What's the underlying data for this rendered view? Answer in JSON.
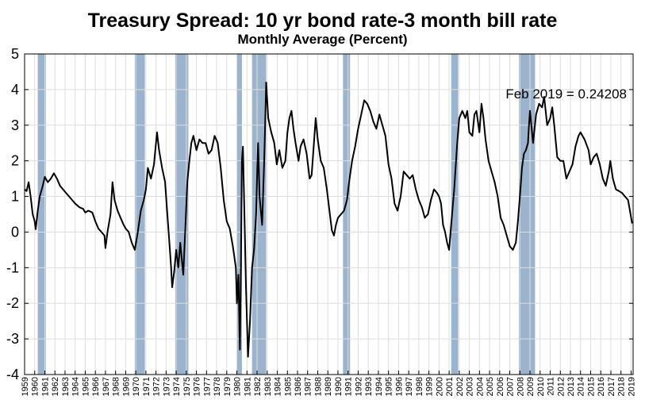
{
  "chart_data": {
    "type": "line",
    "title": "Treasury Spread: 10 yr bond rate-3 month bill rate",
    "subtitle": "Monthly Average (Percent)",
    "xlabel": "",
    "ylabel": "",
    "xlim": [
      1959,
      2019.2
    ],
    "ylim": [
      -4,
      5
    ],
    "yticks": [
      "5",
      "4",
      "3",
      "2",
      "1",
      "0",
      "-1",
      "-2",
      "-3",
      "-4"
    ],
    "xticks": [
      "1959",
      "1960",
      "1961",
      "1962",
      "1963",
      "1964",
      "1965",
      "1966",
      "1967",
      "1968",
      "1969",
      "1970",
      "1971",
      "1972",
      "1973",
      "1974",
      "1975",
      "1976",
      "1977",
      "1978",
      "1979",
      "1980",
      "1981",
      "1982",
      "1983",
      "1984",
      "1985",
      "1986",
      "1987",
      "1988",
      "1989",
      "1990",
      "1991",
      "1992",
      "1993",
      "1994",
      "1995",
      "1996",
      "1997",
      "1998",
      "1999",
      "2000",
      "2001",
      "2002",
      "2003",
      "2004",
      "2005",
      "2006",
      "2007",
      "2008",
      "2009",
      "2010",
      "2011",
      "2012",
      "2013",
      "2014",
      "2015",
      "2016",
      "2017",
      "2018",
      "2019"
    ],
    "grid": true,
    "annotation": "Feb 2019 = 0.24208",
    "colors": {
      "line": "#000000",
      "recession": "#9bb3cd",
      "grid": "#dddddd"
    },
    "recessions": [
      [
        1960.3,
        1961.1
      ],
      [
        1969.9,
        1970.9
      ],
      [
        1973.9,
        1975.2
      ],
      [
        1980.0,
        1980.5
      ],
      [
        1981.5,
        1982.9
      ],
      [
        1990.5,
        1991.2
      ],
      [
        2001.2,
        2001.9
      ],
      [
        2007.9,
        2009.5
      ]
    ],
    "series": [
      {
        "points": [
          [
            1959.0,
            1.2
          ],
          [
            1959.2,
            1.15
          ],
          [
            1959.4,
            1.4
          ],
          [
            1959.6,
            1.0
          ],
          [
            1959.8,
            0.5
          ],
          [
            1960.0,
            0.3
          ],
          [
            1960.1,
            0.08
          ],
          [
            1960.3,
            0.6
          ],
          [
            1960.5,
            1.0
          ],
          [
            1960.8,
            1.3
          ],
          [
            1961.0,
            1.55
          ],
          [
            1961.3,
            1.4
          ],
          [
            1961.6,
            1.5
          ],
          [
            1961.9,
            1.65
          ],
          [
            1962.2,
            1.5
          ],
          [
            1962.5,
            1.3
          ],
          [
            1962.8,
            1.2
          ],
          [
            1963.1,
            1.1
          ],
          [
            1963.4,
            1.0
          ],
          [
            1963.7,
            0.9
          ],
          [
            1964.0,
            0.8
          ],
          [
            1964.4,
            0.7
          ],
          [
            1964.8,
            0.65
          ],
          [
            1965.0,
            0.55
          ],
          [
            1965.3,
            0.6
          ],
          [
            1965.7,
            0.55
          ],
          [
            1966.0,
            0.3
          ],
          [
            1966.3,
            0.1
          ],
          [
            1966.6,
            0.0
          ],
          [
            1966.9,
            -0.1
          ],
          [
            1967.0,
            -0.45
          ],
          [
            1967.2,
            0.0
          ],
          [
            1967.5,
            0.5
          ],
          [
            1967.7,
            1.4
          ],
          [
            1967.9,
            0.9
          ],
          [
            1968.2,
            0.6
          ],
          [
            1968.5,
            0.4
          ],
          [
            1968.8,
            0.2
          ],
          [
            1969.0,
            0.1
          ],
          [
            1969.3,
            0.0
          ],
          [
            1969.6,
            -0.3
          ],
          [
            1969.9,
            -0.5
          ],
          [
            1970.2,
            0.0
          ],
          [
            1970.5,
            0.6
          ],
          [
            1970.8,
            0.9
          ],
          [
            1971.0,
            1.2
          ],
          [
            1971.2,
            1.8
          ],
          [
            1971.5,
            1.5
          ],
          [
            1971.8,
            1.9
          ],
          [
            1972.1,
            2.8
          ],
          [
            1972.3,
            2.3
          ],
          [
            1972.6,
            1.8
          ],
          [
            1972.9,
            1.4
          ],
          [
            1973.1,
            0.6
          ],
          [
            1973.3,
            -0.2
          ],
          [
            1973.5,
            -1.0
          ],
          [
            1973.6,
            -1.55
          ],
          [
            1973.8,
            -1.1
          ],
          [
            1974.0,
            -0.5
          ],
          [
            1974.2,
            -1.0
          ],
          [
            1974.4,
            -0.3
          ],
          [
            1974.7,
            -1.2
          ],
          [
            1974.9,
            0.1
          ],
          [
            1975.1,
            1.4
          ],
          [
            1975.3,
            2.0
          ],
          [
            1975.5,
            2.5
          ],
          [
            1975.7,
            2.7
          ],
          [
            1976.0,
            2.3
          ],
          [
            1976.3,
            2.6
          ],
          [
            1976.6,
            2.5
          ],
          [
            1976.9,
            2.5
          ],
          [
            1977.2,
            2.2
          ],
          [
            1977.5,
            2.3
          ],
          [
            1977.8,
            2.7
          ],
          [
            1978.1,
            2.5
          ],
          [
            1978.4,
            1.8
          ],
          [
            1978.7,
            0.9
          ],
          [
            1979.0,
            0.3
          ],
          [
            1979.3,
            0.1
          ],
          [
            1979.6,
            -0.4
          ],
          [
            1979.9,
            -1.0
          ],
          [
            1980.0,
            -2.0
          ],
          [
            1980.15,
            -1.2
          ],
          [
            1980.3,
            -3.3
          ],
          [
            1980.4,
            -1.0
          ],
          [
            1980.5,
            2.0
          ],
          [
            1980.6,
            2.4
          ],
          [
            1980.75,
            0.5
          ],
          [
            1980.9,
            -1.5
          ],
          [
            1981.0,
            -2.5
          ],
          [
            1981.1,
            -3.5
          ],
          [
            1981.3,
            -2.5
          ],
          [
            1981.5,
            -1.0
          ],
          [
            1981.7,
            -0.5
          ],
          [
            1981.9,
            0.5
          ],
          [
            1982.0,
            1.5
          ],
          [
            1982.1,
            2.5
          ],
          [
            1982.25,
            1.0
          ],
          [
            1982.5,
            0.2
          ],
          [
            1982.7,
            2.0
          ],
          [
            1982.8,
            3.0
          ],
          [
            1982.9,
            4.2
          ],
          [
            1983.1,
            3.2
          ],
          [
            1983.4,
            2.8
          ],
          [
            1983.7,
            2.5
          ],
          [
            1983.95,
            1.9
          ],
          [
            1984.2,
            2.3
          ],
          [
            1984.5,
            1.8
          ],
          [
            1984.8,
            2.0
          ],
          [
            1985.0,
            2.8
          ],
          [
            1985.2,
            3.2
          ],
          [
            1985.4,
            3.4
          ],
          [
            1985.6,
            2.9
          ],
          [
            1985.8,
            2.5
          ],
          [
            1986.1,
            2.0
          ],
          [
            1986.3,
            2.4
          ],
          [
            1986.6,
            2.6
          ],
          [
            1986.9,
            2.2
          ],
          [
            1987.2,
            1.5
          ],
          [
            1987.4,
            1.6
          ],
          [
            1987.6,
            2.4
          ],
          [
            1987.8,
            3.2
          ],
          [
            1988.0,
            2.6
          ],
          [
            1988.3,
            2.0
          ],
          [
            1988.6,
            1.8
          ],
          [
            1988.9,
            1.2
          ],
          [
            1989.2,
            0.5
          ],
          [
            1989.4,
            0.05
          ],
          [
            1989.6,
            -0.1
          ],
          [
            1989.8,
            0.2
          ],
          [
            1990.0,
            0.4
          ],
          [
            1990.3,
            0.5
          ],
          [
            1990.6,
            0.6
          ],
          [
            1990.9,
            0.9
          ],
          [
            1991.1,
            1.4
          ],
          [
            1991.4,
            2.0
          ],
          [
            1991.7,
            2.4
          ],
          [
            1992.0,
            2.9
          ],
          [
            1992.3,
            3.3
          ],
          [
            1992.6,
            3.7
          ],
          [
            1992.9,
            3.6
          ],
          [
            1993.2,
            3.4
          ],
          [
            1993.5,
            3.1
          ],
          [
            1993.8,
            2.9
          ],
          [
            1994.1,
            3.3
          ],
          [
            1994.4,
            3.0
          ],
          [
            1994.7,
            2.7
          ],
          [
            1995.0,
            1.9
          ],
          [
            1995.3,
            1.5
          ],
          [
            1995.6,
            0.8
          ],
          [
            1995.9,
            0.6
          ],
          [
            1996.2,
            1.0
          ],
          [
            1996.5,
            1.7
          ],
          [
            1996.8,
            1.6
          ],
          [
            1997.1,
            1.5
          ],
          [
            1997.4,
            1.6
          ],
          [
            1997.7,
            1.2
          ],
          [
            1998.0,
            0.9
          ],
          [
            1998.3,
            0.7
          ],
          [
            1998.6,
            0.4
          ],
          [
            1998.9,
            0.5
          ],
          [
            1999.2,
            0.9
          ],
          [
            1999.5,
            1.2
          ],
          [
            1999.8,
            1.1
          ],
          [
            2000.0,
            1.0
          ],
          [
            2000.2,
            0.8
          ],
          [
            2000.4,
            0.2
          ],
          [
            2000.6,
            0.0
          ],
          [
            2000.8,
            -0.3
          ],
          [
            2001.0,
            -0.5
          ],
          [
            2001.2,
            0.2
          ],
          [
            2001.5,
            1.2
          ],
          [
            2001.8,
            2.5
          ],
          [
            2002.0,
            3.2
          ],
          [
            2002.3,
            3.4
          ],
          [
            2002.6,
            3.2
          ],
          [
            2002.8,
            3.4
          ],
          [
            2003.0,
            2.8
          ],
          [
            2003.3,
            2.7
          ],
          [
            2003.5,
            3.3
          ],
          [
            2003.7,
            3.4
          ],
          [
            2004.0,
            2.8
          ],
          [
            2004.2,
            3.6
          ],
          [
            2004.4,
            3.2
          ],
          [
            2004.6,
            2.6
          ],
          [
            2004.9,
            2.0
          ],
          [
            2005.2,
            1.7
          ],
          [
            2005.5,
            1.4
          ],
          [
            2005.8,
            1.0
          ],
          [
            2006.1,
            0.4
          ],
          [
            2006.4,
            0.2
          ],
          [
            2006.7,
            -0.1
          ],
          [
            2007.0,
            -0.4
          ],
          [
            2007.3,
            -0.5
          ],
          [
            2007.6,
            -0.3
          ],
          [
            2007.8,
            0.3
          ],
          [
            2008.0,
            1.0
          ],
          [
            2008.2,
            1.8
          ],
          [
            2008.4,
            2.2
          ],
          [
            2008.6,
            2.3
          ],
          [
            2008.8,
            2.5
          ],
          [
            2008.9,
            3.0
          ],
          [
            2009.0,
            3.4
          ],
          [
            2009.3,
            2.5
          ],
          [
            2009.6,
            3.3
          ],
          [
            2009.9,
            3.6
          ],
          [
            2010.2,
            3.5
          ],
          [
            2010.4,
            3.8
          ],
          [
            2010.7,
            3.0
          ],
          [
            2011.0,
            3.2
          ],
          [
            2011.2,
            3.5
          ],
          [
            2011.4,
            3.0
          ],
          [
            2011.7,
            2.1
          ],
          [
            2012.0,
            2.0
          ],
          [
            2012.3,
            2.0
          ],
          [
            2012.6,
            1.5
          ],
          [
            2012.9,
            1.7
          ],
          [
            2013.2,
            1.9
          ],
          [
            2013.5,
            2.4
          ],
          [
            2013.8,
            2.7
          ],
          [
            2014.0,
            2.8
          ],
          [
            2014.4,
            2.6
          ],
          [
            2014.8,
            2.3
          ],
          [
            2015.0,
            1.9
          ],
          [
            2015.3,
            2.1
          ],
          [
            2015.6,
            2.2
          ],
          [
            2015.9,
            1.9
          ],
          [
            2016.2,
            1.5
          ],
          [
            2016.5,
            1.3
          ],
          [
            2016.8,
            1.7
          ],
          [
            2016.95,
            2.0
          ],
          [
            2017.2,
            1.5
          ],
          [
            2017.5,
            1.2
          ],
          [
            2017.8,
            1.15
          ],
          [
            2018.1,
            1.1
          ],
          [
            2018.4,
            1.0
          ],
          [
            2018.7,
            0.9
          ],
          [
            2018.95,
            0.5
          ],
          [
            2019.1,
            0.24208
          ]
        ]
      }
    ]
  }
}
